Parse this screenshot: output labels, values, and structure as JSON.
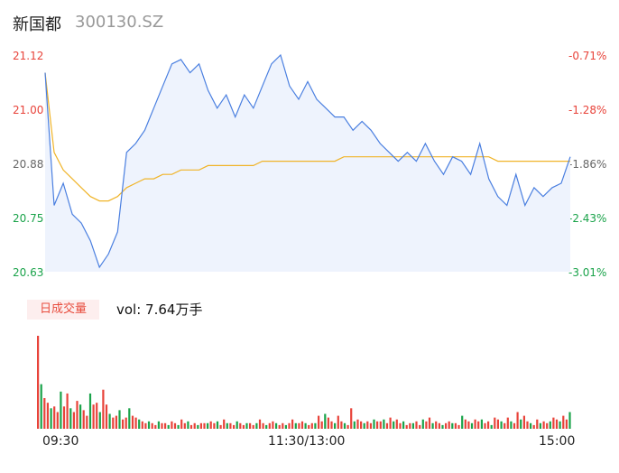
{
  "header": {
    "name": "新国都",
    "code": "300130.SZ"
  },
  "volume": {
    "tab_label": "日成交量",
    "vol_text": "vol: 7.64万手"
  },
  "colors": {
    "price": "#4a7fe0",
    "avg": "#f0b429",
    "up": "#e8433a",
    "down": "#1aa34a",
    "fill": "#eef3fd"
  },
  "chart_data": {
    "type": "line",
    "title": "",
    "y_left_ticks": [
      "21.12",
      "21.00",
      "20.88",
      "20.75",
      "20.63"
    ],
    "y_right_ticks": [
      "-0.71%",
      "-1.28%",
      "-1.86%",
      "-2.43%",
      "-3.01%"
    ],
    "x_ticks": [
      "09:30",
      "11:30/13:00",
      "15:00"
    ],
    "ylim": [
      20.63,
      21.12
    ],
    "price": [
      21.08,
      20.78,
      20.83,
      20.76,
      20.74,
      20.7,
      20.64,
      20.67,
      20.72,
      20.9,
      20.92,
      20.95,
      21.0,
      21.05,
      21.1,
      21.11,
      21.08,
      21.1,
      21.04,
      21.0,
      21.03,
      20.98,
      21.03,
      21.0,
      21.05,
      21.1,
      21.12,
      21.05,
      21.02,
      21.06,
      21.02,
      21.0,
      20.98,
      20.98,
      20.95,
      20.97,
      20.95,
      20.92,
      20.9,
      20.88,
      20.9,
      20.88,
      20.92,
      20.88,
      20.85,
      20.89,
      20.88,
      20.85,
      20.92,
      20.84,
      20.8,
      20.78,
      20.85,
      20.78,
      20.82,
      20.8,
      20.82,
      20.83,
      20.89
    ],
    "avg": [
      21.08,
      20.9,
      20.86,
      20.84,
      20.82,
      20.8,
      20.79,
      20.79,
      20.8,
      20.82,
      20.83,
      20.84,
      20.84,
      20.85,
      20.85,
      20.86,
      20.86,
      20.86,
      20.87,
      20.87,
      20.87,
      20.87,
      20.87,
      20.87,
      20.88,
      20.88,
      20.88,
      20.88,
      20.88,
      20.88,
      20.88,
      20.88,
      20.88,
      20.89,
      20.89,
      20.89,
      20.89,
      20.89,
      20.89,
      20.89,
      20.89,
      20.89,
      20.89,
      20.89,
      20.89,
      20.89,
      20.89,
      20.89,
      20.89,
      20.89,
      20.88,
      20.88,
      20.88,
      20.88,
      20.88,
      20.88,
      20.88,
      20.88,
      20.88
    ],
    "volumes": [
      100,
      48,
      33,
      28,
      22,
      24,
      18,
      40,
      24,
      38,
      22,
      18,
      30,
      26,
      20,
      14,
      38,
      26,
      28,
      18,
      42,
      26,
      16,
      12,
      14,
      20,
      10,
      12,
      22,
      14,
      12,
      10,
      8,
      6,
      8,
      6,
      4,
      8,
      6,
      6,
      4,
      8,
      6,
      4,
      10,
      6,
      8,
      4,
      6,
      4,
      6,
      6,
      6,
      8,
      6,
      8,
      4,
      10,
      6,
      6,
      4,
      8,
      6,
      4,
      6,
      6,
      4,
      6,
      10,
      6,
      4,
      6,
      8,
      6,
      4,
      6,
      4,
      6,
      10,
      6,
      6,
      8,
      6,
      4,
      6,
      6,
      14,
      8,
      16,
      12,
      8,
      6,
      14,
      8,
      6,
      4,
      22,
      8,
      10,
      8,
      6,
      8,
      6,
      10,
      8,
      8,
      10,
      6,
      12,
      8,
      10,
      6,
      8,
      4,
      6,
      6,
      8,
      4,
      10,
      8,
      12,
      6,
      8,
      6,
      4,
      6,
      8,
      6,
      6,
      4,
      14,
      10,
      8,
      6,
      10,
      8,
      10,
      6,
      8,
      4,
      12,
      10,
      8,
      6,
      12,
      8,
      6,
      18,
      10,
      14,
      8,
      6,
      4,
      10,
      6,
      8,
      6,
      8,
      12,
      10,
      8,
      14,
      10,
      18
    ]
  }
}
